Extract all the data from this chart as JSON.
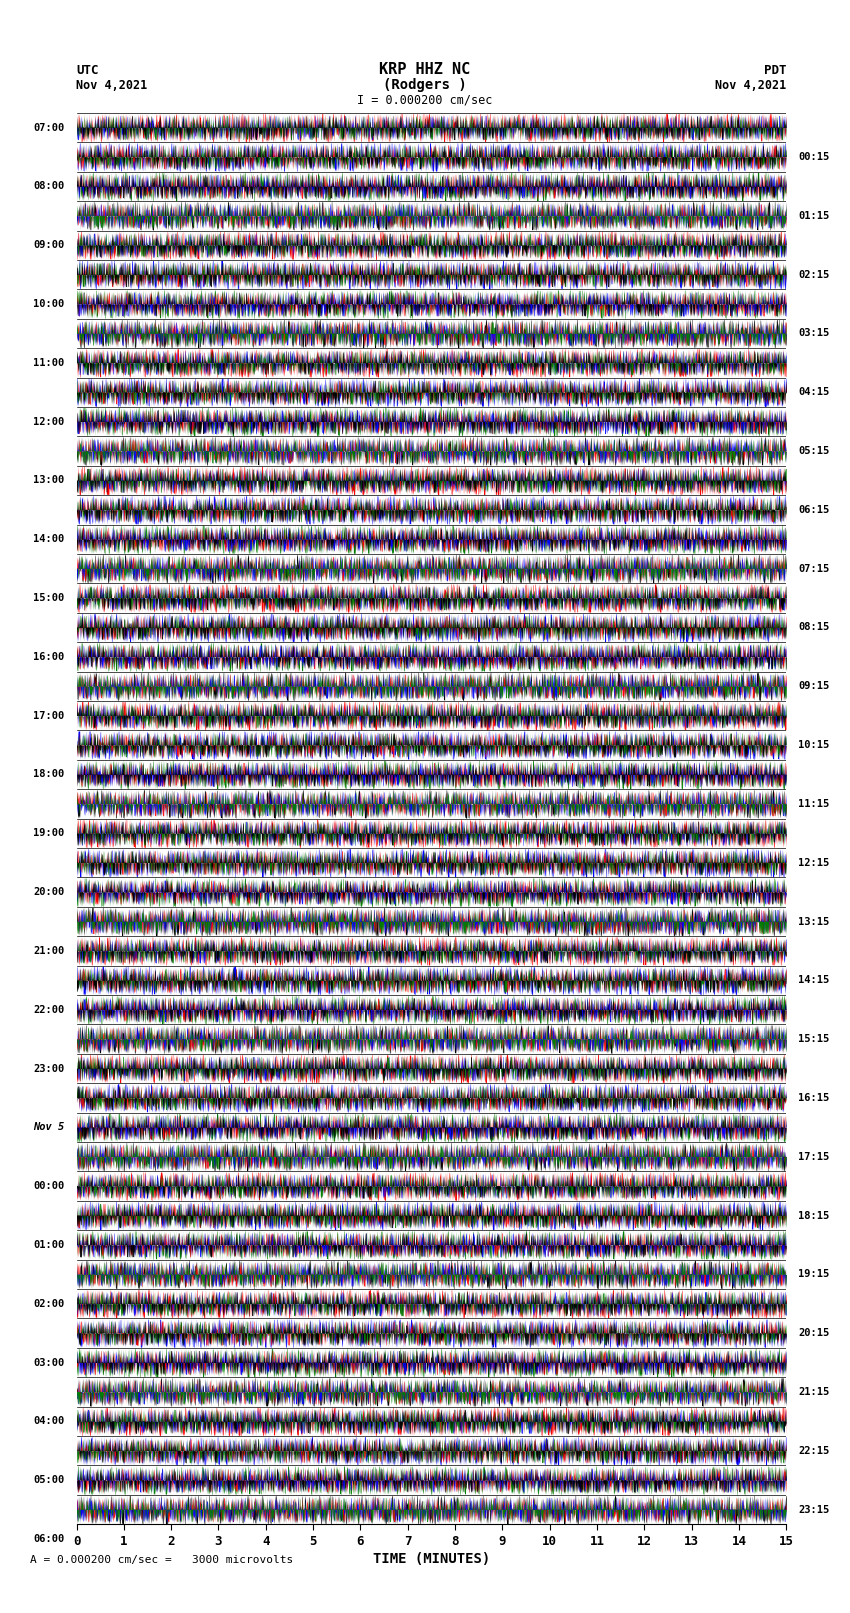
{
  "title_line1": "KRP HHZ NC",
  "title_line2": "(Rodgers )",
  "title_scale": "I = 0.000200 cm/sec",
  "utc_label": "UTC",
  "pdt_label": "PDT",
  "date_left": "Nov 4,2021",
  "date_right": "Nov 4,2021",
  "xlabel": "TIME (MINUTES)",
  "bottom_note": "A = 0.000200 cm/sec =   3000 microvolts",
  "left_times": [
    "07:00",
    "08:00",
    "09:00",
    "10:00",
    "11:00",
    "12:00",
    "13:00",
    "14:00",
    "15:00",
    "16:00",
    "17:00",
    "18:00",
    "19:00",
    "20:00",
    "21:00",
    "22:00",
    "23:00",
    "Nov 5",
    "00:00",
    "01:00",
    "02:00",
    "03:00",
    "04:00",
    "05:00",
    "06:00"
  ],
  "right_times": [
    "00:15",
    "01:15",
    "02:15",
    "03:15",
    "04:15",
    "05:15",
    "06:15",
    "07:15",
    "08:15",
    "09:15",
    "10:15",
    "11:15",
    "12:15",
    "13:15",
    "14:15",
    "15:15",
    "16:15",
    "17:15",
    "18:15",
    "19:15",
    "20:15",
    "21:15",
    "22:15",
    "23:15"
  ],
  "n_rows": 48,
  "n_cols": 1800,
  "x_ticks": [
    0,
    1,
    2,
    3,
    4,
    5,
    6,
    7,
    8,
    9,
    10,
    11,
    12,
    13,
    14,
    15
  ],
  "xlim": [
    0,
    15
  ],
  "row_colors": [
    "red",
    "blue",
    "green",
    "black",
    "red",
    "blue",
    "green",
    "black",
    "red",
    "blue",
    "green",
    "black",
    "red",
    "blue",
    "green",
    "black",
    "red",
    "blue",
    "green",
    "black",
    "red",
    "blue",
    "green",
    "black",
    "red",
    "blue",
    "green",
    "black",
    "red",
    "blue",
    "green",
    "black",
    "red",
    "blue",
    "green",
    "black",
    "red",
    "blue",
    "green",
    "black",
    "red",
    "blue",
    "green",
    "black",
    "red",
    "blue",
    "green",
    "black"
  ],
  "bg_color": "white",
  "seed": 42
}
